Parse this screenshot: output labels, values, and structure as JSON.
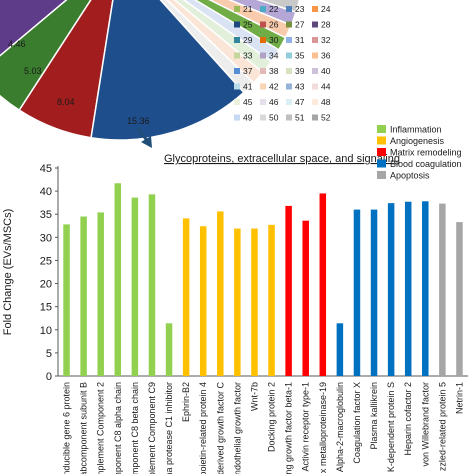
{
  "pie": {
    "labels": [
      "4.46",
      "5.03",
      "8.04",
      "15.36"
    ],
    "legend": [
      {
        "label": "21",
        "color": "#9bbb59"
      },
      {
        "label": "22",
        "color": "#4bacc6"
      },
      {
        "label": "23",
        "color": "#4f81bd"
      },
      {
        "label": "24",
        "color": "#f79646"
      },
      {
        "label": "25",
        "color": "#1f497d"
      },
      {
        "label": "26",
        "color": "#c0504d"
      },
      {
        "label": "27",
        "color": "#76923c"
      },
      {
        "label": "28",
        "color": "#5f497a"
      },
      {
        "label": "29",
        "color": "#31859c"
      },
      {
        "label": "30",
        "color": "#e36c09"
      },
      {
        "label": "31",
        "color": "#8db3e2"
      },
      {
        "label": "32",
        "color": "#d99694"
      },
      {
        "label": "33",
        "color": "#c3d69b"
      },
      {
        "label": "34",
        "color": "#b2a1c7"
      },
      {
        "label": "35",
        "color": "#93cddd"
      },
      {
        "label": "36",
        "color": "#fac08f"
      },
      {
        "label": "37",
        "color": "#548dd4"
      },
      {
        "label": "38",
        "color": "#e5b9b7"
      },
      {
        "label": "39",
        "color": "#d7e3bc"
      },
      {
        "label": "40",
        "color": "#ccc1d9"
      },
      {
        "label": "41",
        "color": "#b7dde8"
      },
      {
        "label": "42",
        "color": "#fbd4b4"
      },
      {
        "label": "43",
        "color": "#95b3d7"
      },
      {
        "label": "44",
        "color": "#f2dcdb"
      },
      {
        "label": "45",
        "color": "#ebf1dd"
      },
      {
        "label": "46",
        "color": "#e5e0ec"
      },
      {
        "label": "47",
        "color": "#dbeef3"
      },
      {
        "label": "48",
        "color": "#fdeada"
      },
      {
        "label": "49",
        "color": "#c6d9f0"
      },
      {
        "label": "50",
        "color": "#d8d8d8"
      },
      {
        "label": "51",
        "color": "#bfbfbf"
      },
      {
        "label": "52",
        "color": "#a5a5a5"
      }
    ]
  },
  "category_legend": [
    {
      "label": "Inflammation",
      "color": "#92d050"
    },
    {
      "label": "Angiogenesis",
      "color": "#ffc000"
    },
    {
      "label": "Matrix remodeling",
      "color": "#ff0000"
    },
    {
      "label": "Blood coagulation",
      "color": "#0070c0"
    },
    {
      "label": "Apoptosis",
      "color": "#a6a6a6"
    }
  ],
  "chart_data": {
    "type": "bar",
    "title": "Glycoproteins, extracellular space, and signaling",
    "xlabel": "",
    "ylabel": "Fold Change (EVs/MSCs)",
    "ylim": [
      0,
      45
    ],
    "yticks": [
      0,
      5,
      10,
      15,
      20,
      25,
      30,
      35,
      40,
      45
    ],
    "grid": false,
    "legend_position": "top-right",
    "categories": [
      "inducible gene 6 protein",
      "abcomponent subunit B",
      "mplement Component 2",
      "component C8 alpha chain",
      "component C8 beta chain",
      "plement Component C9",
      "na protease C1 inhibitor",
      "Ephrin-B2",
      "poietin-related protein 4",
      "derived growth factor C",
      "ndothelial growth factor",
      "Wnt-7b",
      "Docking protein 2",
      "ng growth factor beta-1",
      "Activin receptor type-1",
      "x metalloproteinase-19",
      "Alpha-2-macroglobulin",
      "Coagulation factor X",
      "Plasma kallikrein",
      "K-dependent protein S",
      "Heparin cofactor 2",
      "von Willebrand factor",
      "zzled-related protein 5",
      "Netrin-1"
    ],
    "values": [
      32.8,
      34.5,
      35.4,
      41.7,
      38.6,
      39.3,
      11.4,
      34.1,
      32.4,
      35.6,
      31.9,
      31.9,
      32.7,
      36.8,
      33.6,
      39.5,
      11.4,
      36.0,
      36.0,
      37.4,
      37.7,
      37.8,
      37.3,
      33.3
    ],
    "bar_groups": [
      "Inflammation",
      "Inflammation",
      "Inflammation",
      "Inflammation",
      "Inflammation",
      "Inflammation",
      "Inflammation",
      "Angiogenesis",
      "Angiogenesis",
      "Angiogenesis",
      "Angiogenesis",
      "Angiogenesis",
      "Angiogenesis",
      "Matrix remodeling",
      "Matrix remodeling",
      "Matrix remodeling",
      "Blood coagulation",
      "Blood coagulation",
      "Blood coagulation",
      "Blood coagulation",
      "Blood coagulation",
      "Blood coagulation",
      "Apoptosis",
      "Apoptosis"
    ]
  }
}
